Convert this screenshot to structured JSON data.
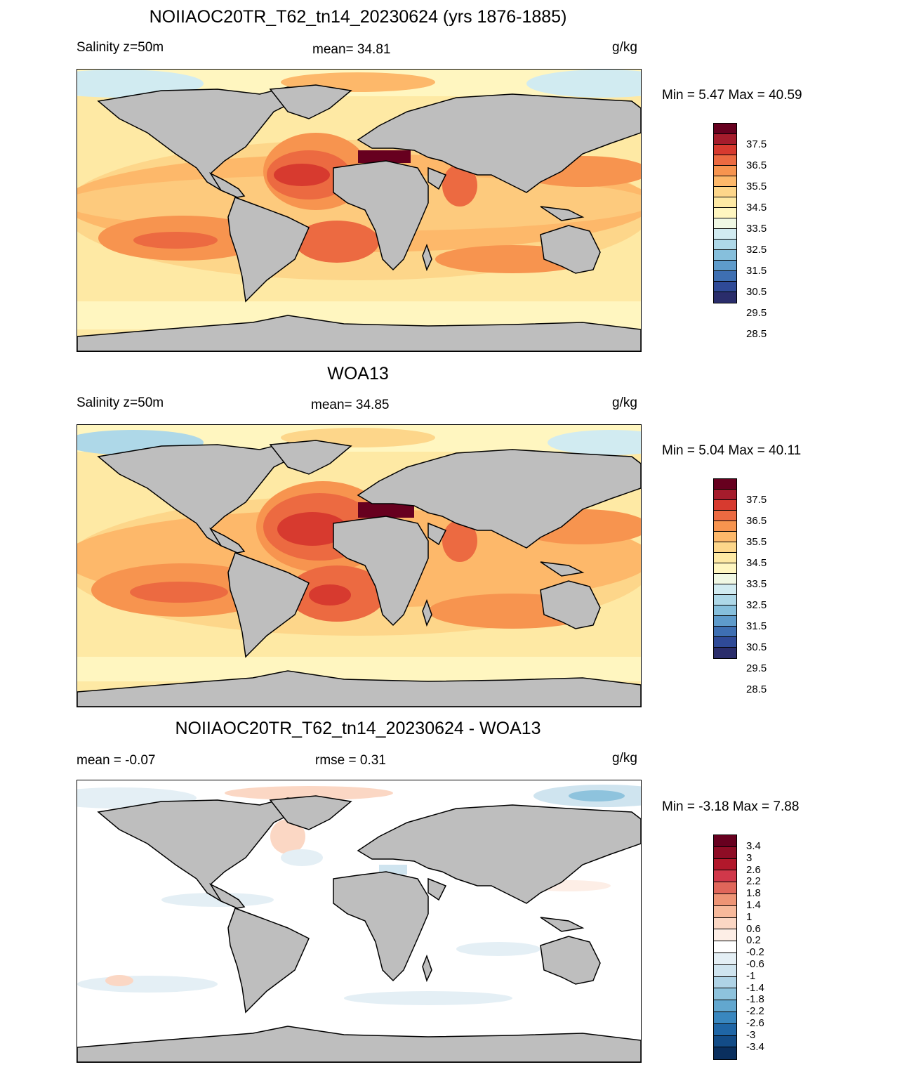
{
  "panels": [
    {
      "title": "NOIIAOC20TR_T62_tn14_20230624 (yrs 1876-1885)",
      "left_label": "Salinity z=50m",
      "center_label": "mean=  34.81",
      "right_label": "g/kg",
      "minmax": "Min =   5.47 Max =  40.59",
      "palette": "salinity",
      "colorbar_labels": [
        "37.5",
        "36.5",
        "35.5",
        "34.5",
        "33.5",
        "32.5",
        "31.5",
        "30.5",
        "29.5",
        "28.5"
      ]
    },
    {
      "title": "WOA13",
      "left_label": "Salinity z=50m",
      "center_label": "mean=  34.85",
      "right_label": "g/kg",
      "minmax": "Min =   5.04 Max =  40.11",
      "palette": "salinity",
      "colorbar_labels": [
        "37.5",
        "36.5",
        "35.5",
        "34.5",
        "33.5",
        "32.5",
        "31.5",
        "30.5",
        "29.5",
        "28.5"
      ]
    },
    {
      "title": "NOIIAOC20TR_T62_tn14_20230624 - WOA13",
      "left_label": "mean =  -0.07",
      "center_label": "rmse =   0.31",
      "right_label": "g/kg",
      "minmax": "Min =  -3.18 Max =   7.88",
      "palette": "diff",
      "colorbar_labels": [
        "3.4",
        "3",
        "2.6",
        "2.2",
        "1.8",
        "1.4",
        "1",
        "0.6",
        "0.2",
        "-0.2",
        "-0.6",
        "-1",
        "-1.4",
        "-1.8",
        "-2.2",
        "-2.6",
        "-3",
        "-3.4"
      ]
    }
  ],
  "palettes": {
    "salinity": [
      "#67001f",
      "#a51c2c",
      "#d73a2f",
      "#ec6a41",
      "#f7944f",
      "#fdb86a",
      "#fdd68a",
      "#fee9a4",
      "#fff6c0",
      "#f0f8e4",
      "#d1ebf1",
      "#aed8e8",
      "#86bfdc",
      "#5e9bcb",
      "#3e6fb2",
      "#2f4a97",
      "#2a2d6b"
    ],
    "diff": [
      "#67001f",
      "#8e0c25",
      "#b2182b",
      "#d1384a",
      "#e0665a",
      "#ee9475",
      "#f7b99b",
      "#fbd7c4",
      "#fdeee6",
      "#ffffff",
      "#e4eff5",
      "#cfe4ef",
      "#afd3e6",
      "#8ec3dd",
      "#62a7cf",
      "#3987bf",
      "#1f66a6",
      "#134c87",
      "#0a2f5e"
    ]
  },
  "colors": {
    "land": "#bebebe",
    "coast": "#000000"
  }
}
